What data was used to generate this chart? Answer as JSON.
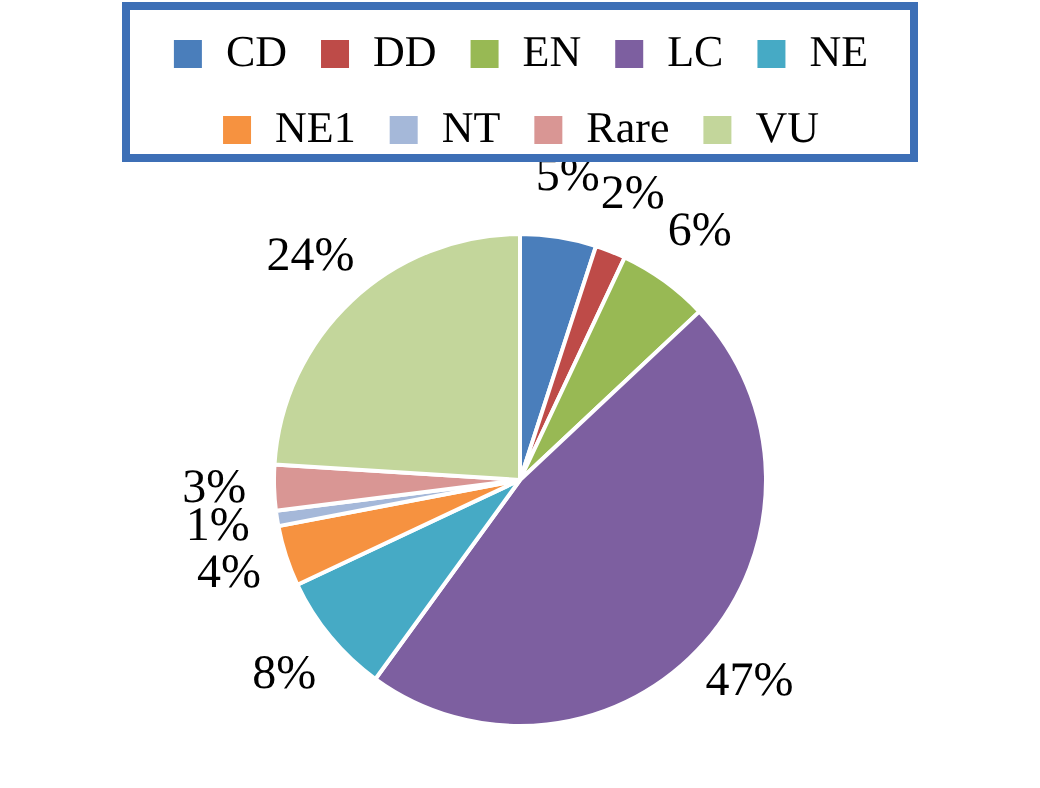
{
  "chart_data": {
    "type": "pie",
    "categories": [
      "CD",
      "DD",
      "EN",
      "LC",
      "NE",
      "NE1",
      "NT",
      "Rare",
      "VU"
    ],
    "values": [
      5,
      2,
      6,
      47,
      8,
      4,
      1,
      3,
      24
    ],
    "colors": [
      "#4a7ebb",
      "#be4b48",
      "#98b954",
      "#7d5fa0",
      "#46aac5",
      "#f69240",
      "#a5b8d9",
      "#d99694",
      "#c3d69b"
    ],
    "value_labels": [
      "5%",
      "2%",
      "6%",
      "47%",
      "8%",
      "4%",
      "1%",
      "3%",
      "24%"
    ],
    "legend": "top"
  }
}
